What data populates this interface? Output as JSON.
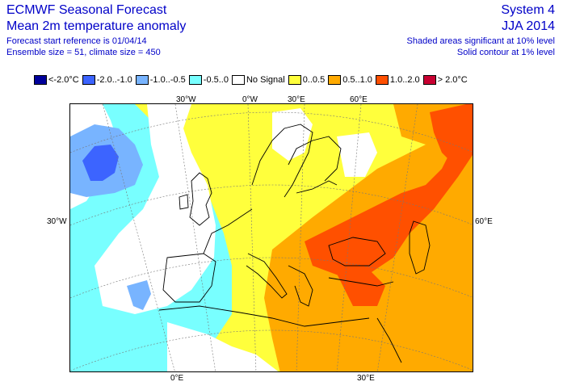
{
  "header": {
    "title": "ECMWF Seasonal Forecast",
    "subtitle": "Mean 2m temperature anomaly",
    "forecast_ref": "Forecast start reference is 01/04/14",
    "ensemble": "Ensemble size = 51, climate size = 450",
    "system": "System 4",
    "season": "JJA 2014",
    "sig10": "Shaded areas significant at 10% level",
    "sig1": "Solid contour at 1% level"
  },
  "legend": [
    {
      "label": "<-2.0°C",
      "color": "#00009b"
    },
    {
      "label": "-2.0..-1.0",
      "color": "#3c64ff"
    },
    {
      "label": "-1.0..-0.5",
      "color": "#78b4ff"
    },
    {
      "label": "-0.5..0",
      "color": "#78ffff"
    },
    {
      "label": "No Signal",
      "color": "#ffffff"
    },
    {
      "label": "0..0.5",
      "color": "#ffff3c"
    },
    {
      "label": "0.5..1.0",
      "color": "#ffaa00"
    },
    {
      "label": "1.0..2.0",
      "color": "#ff5000"
    },
    {
      "label": "> 2.0°C",
      "color": "#c80032"
    }
  ],
  "map_labels": {
    "top": [
      "30°W",
      "0°W",
      "30°E",
      "60°E"
    ],
    "left": "30°W",
    "right": "60°E",
    "bottom": [
      "0°E",
      "30°E"
    ]
  }
}
